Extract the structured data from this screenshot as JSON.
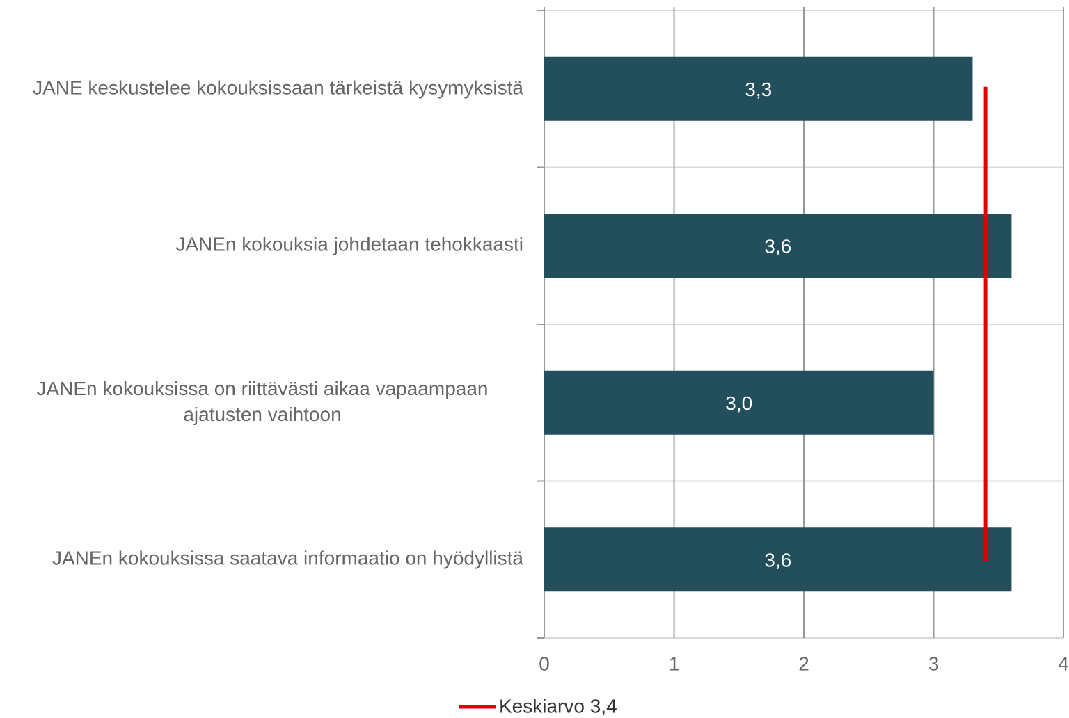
{
  "chart_data": {
    "type": "bar",
    "orientation": "horizontal",
    "categories": [
      "JANE keskustelee kokouksissaan tärkeistä kysymyksistä",
      "JANEn kokouksia johdetaan tehokkaasti",
      "JANEn kokouksissa on riittävästi aikaa vapaampaan ajatusten vaihtoon",
      "JANEn kokouksissa saatava informaatio on hyödyllistä"
    ],
    "values": [
      3.3,
      3.6,
      3.0,
      3.6
    ],
    "value_labels": [
      "3,3",
      "3,6",
      "3,0",
      "3,6"
    ],
    "color": "#234e5c",
    "xlim": [
      0,
      4
    ],
    "xticks": [
      0,
      1,
      2,
      3,
      4
    ],
    "grid": true,
    "reference_line": {
      "name": "Keskiarvo 3,4",
      "value": 3.4,
      "color": "#e00000"
    },
    "legend": "bottom"
  }
}
